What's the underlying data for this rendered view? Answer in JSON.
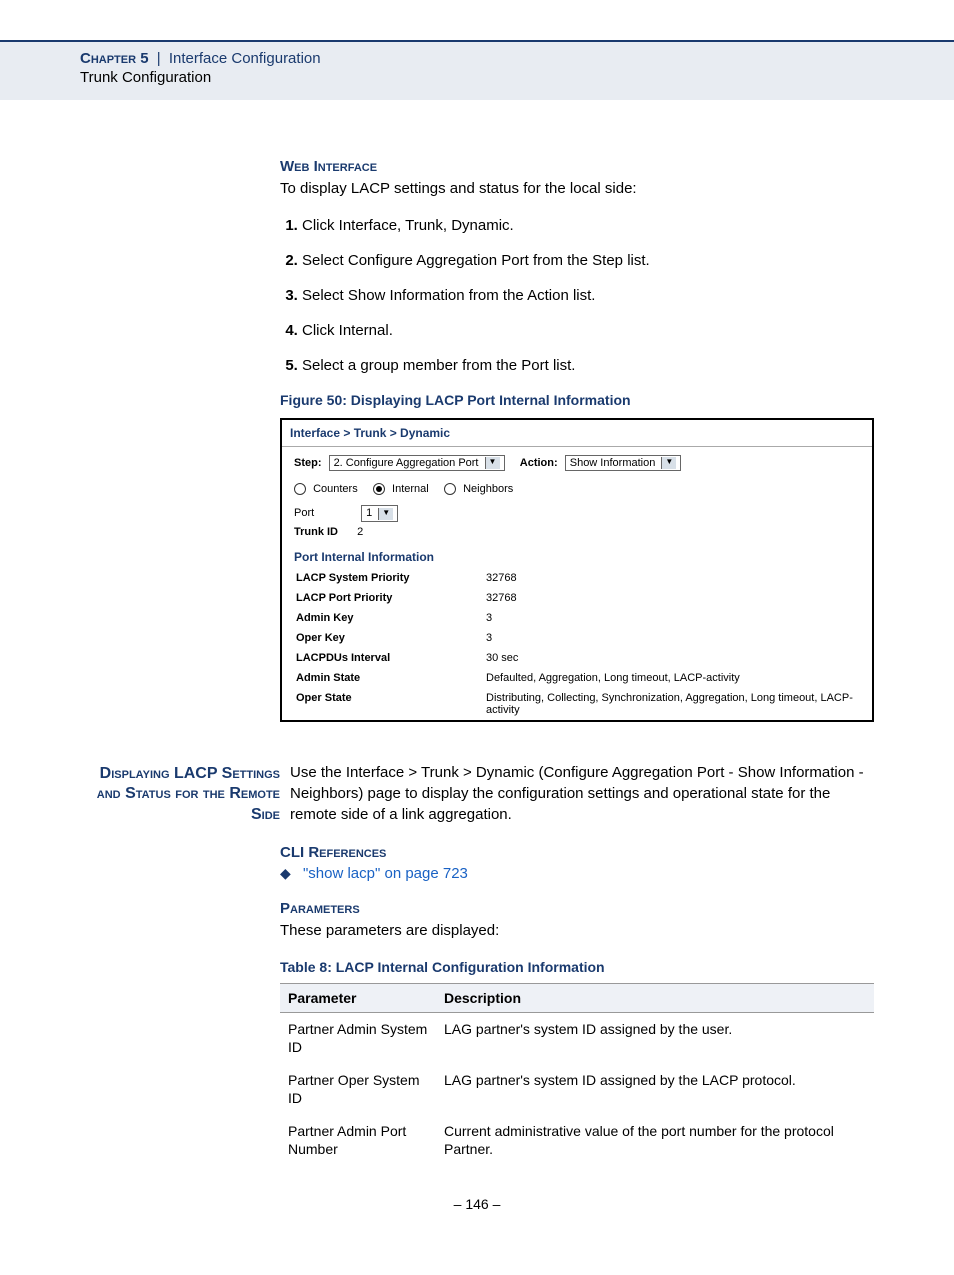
{
  "header": {
    "chapter": "Chapter 5",
    "separator": "|",
    "section": "Interface Configuration",
    "subsection": "Trunk Configuration"
  },
  "webInterface": {
    "heading": "Web Interface",
    "intro": "To display LACP settings and status for the local side:",
    "steps": [
      "Click Interface, Trunk, Dynamic.",
      "Select Configure Aggregation Port from the Step list.",
      "Select Show Information from the Action list.",
      "Click Internal.",
      "Select a group member from the Port list."
    ]
  },
  "figure": {
    "caption": "Figure 50:  Displaying LACP Port Internal Information",
    "breadcrumb": "Interface > Trunk > Dynamic",
    "stepLabel": "Step:",
    "stepSelect": "2. Configure Aggregation Port",
    "actionLabel": "Action:",
    "actionSelect": "Show Information",
    "radios": {
      "counters": "Counters",
      "internal": "Internal",
      "neighbors": "Neighbors"
    },
    "portLabel": "Port",
    "portSelect": "1",
    "trunkLabel": "Trunk ID",
    "trunkValue": "2",
    "subhead": "Port Internal Information",
    "rows": [
      {
        "k": "LACP System Priority",
        "v": "32768"
      },
      {
        "k": "LACP Port Priority",
        "v": "32768"
      },
      {
        "k": "Admin Key",
        "v": "3"
      },
      {
        "k": "Oper Key",
        "v": "3"
      },
      {
        "k": "LACPDUs Interval",
        "v": "30 sec"
      },
      {
        "k": "Admin State",
        "v": "Defaulted, Aggregation, Long timeout, LACP-activity"
      },
      {
        "k": "Oper State",
        "v": "Distributing, Collecting, Synchronization, Aggregation, Long timeout, LACP-activity"
      }
    ]
  },
  "sideHeading": "Displaying LACP Settings and Status for the Remote Side",
  "sideBody": "Use the Interface > Trunk > Dynamic (Configure Aggregation Port - Show Information - Neighbors) page to display the configuration settings and operational state for the remote side of a link aggregation.",
  "cli": {
    "heading": "CLI References",
    "bullet": "\"show lacp\" on page 723"
  },
  "params": {
    "heading": "Parameters",
    "intro": "These parameters are displayed:",
    "tableCaption": "Table 8: LACP Internal Configuration Information",
    "colParam": "Parameter",
    "colDesc": "Description",
    "rows": [
      {
        "p": "Partner Admin System ID",
        "d": "LAG partner's system ID assigned by the user."
      },
      {
        "p": "Partner Oper System ID",
        "d": "LAG partner's system ID assigned by the LACP protocol."
      },
      {
        "p": "Partner Admin Port Number",
        "d": "Current administrative value of the port number for the protocol Partner."
      }
    ]
  },
  "pageNumber": "–  146  –"
}
